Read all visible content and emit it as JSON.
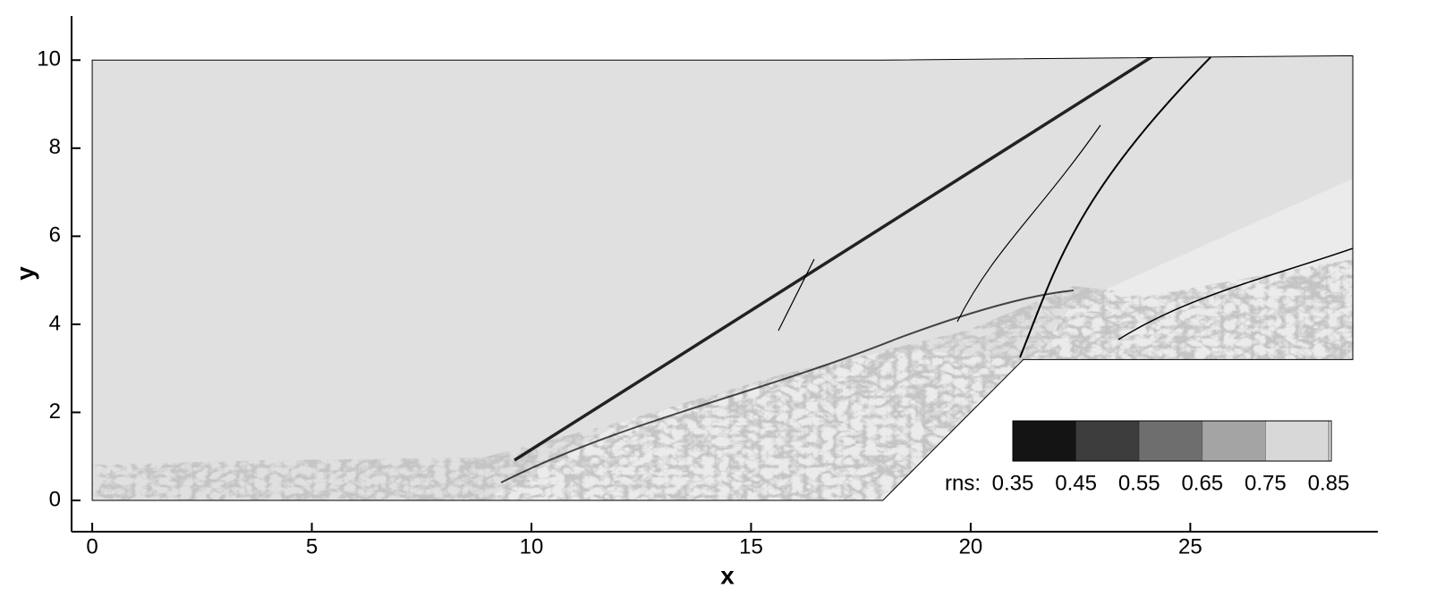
{
  "chart_data": {
    "type": "contour",
    "xlabel": "x",
    "ylabel": "y",
    "xlim": [
      -0.47,
      29.27
    ],
    "ylim": [
      -0.71,
      11.0
    ],
    "xticks": [
      0,
      5,
      10,
      15,
      20,
      25
    ],
    "yticks": [
      0,
      2,
      4,
      6,
      8,
      10
    ],
    "domain": {
      "x": [
        0,
        18,
        21.2,
        28.7,
        28.7,
        18,
        0
      ],
      "y": [
        0,
        0,
        3.2,
        3.2,
        10.1,
        10,
        10
      ]
    },
    "background_color": "#e0e0e0",
    "colorbar": {
      "label": "rns:",
      "levels": [
        0.35,
        0.45,
        0.55,
        0.65,
        0.75,
        0.85
      ],
      "colors": [
        "#141414",
        "#3c3c3c",
        "#6e6e6e",
        "#a4a4a4",
        "#d8d8d8"
      ]
    }
  }
}
